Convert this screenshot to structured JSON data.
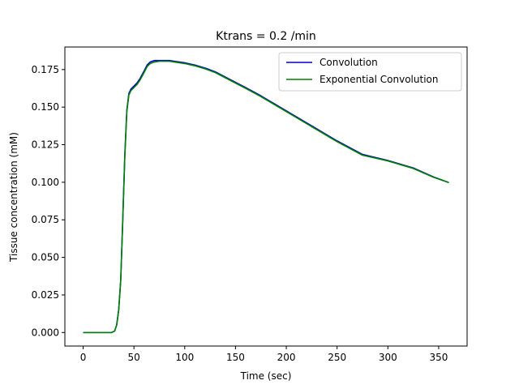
{
  "chart_data": {
    "type": "line",
    "title": "Ktrans = 0.2 /min",
    "xlabel": "Time (sec)",
    "ylabel": "Tissue concentration (mM)",
    "xlim": [
      -18,
      378
    ],
    "ylim": [
      -0.009,
      0.19
    ],
    "xticks": [
      0,
      50,
      100,
      150,
      200,
      250,
      300,
      350
    ],
    "yticks": [
      0.0,
      0.025,
      0.05,
      0.075,
      0.1,
      0.125,
      0.15,
      0.175
    ],
    "xtick_labels": [
      "0",
      "50",
      "100",
      "150",
      "200",
      "250",
      "300",
      "350"
    ],
    "ytick_labels": [
      "0.000",
      "0.025",
      "0.050",
      "0.075",
      "0.100",
      "0.125",
      "0.150",
      "0.175"
    ],
    "grid": false,
    "legend_position": "top-right",
    "series": [
      {
        "name": "Convolution",
        "color": "#0000cc",
        "x": [
          0,
          10,
          20,
          28,
          31,
          33,
          35,
          37,
          39,
          41,
          43,
          45,
          47,
          50,
          53,
          56,
          60,
          63,
          66,
          70,
          75,
          80,
          85,
          90,
          100,
          110,
          120,
          130,
          140,
          150,
          160,
          175,
          200,
          225,
          250,
          275,
          300,
          325,
          345,
          360
        ],
        "y": [
          0.0,
          0.0,
          0.0,
          0.0,
          0.001,
          0.005,
          0.015,
          0.035,
          0.075,
          0.118,
          0.148,
          0.159,
          0.162,
          0.164,
          0.166,
          0.169,
          0.174,
          0.178,
          0.18,
          0.181,
          0.181,
          0.181,
          0.181,
          0.1805,
          0.1795,
          0.178,
          0.176,
          0.1735,
          0.17,
          0.1665,
          0.163,
          0.1575,
          0.1475,
          0.1375,
          0.1275,
          0.1185,
          0.1145,
          0.1095,
          0.1035,
          0.0998
        ]
      },
      {
        "name": "Exponential Convolution",
        "color": "#008000",
        "x": [
          0,
          10,
          20,
          28,
          31,
          33,
          35,
          37,
          39,
          41,
          43,
          45,
          47,
          50,
          53,
          56,
          60,
          63,
          66,
          70,
          75,
          80,
          85,
          90,
          100,
          110,
          120,
          130,
          140,
          150,
          160,
          175,
          200,
          225,
          250,
          275,
          300,
          325,
          345,
          360
        ],
        "y": [
          0.0,
          0.0,
          0.0,
          0.0,
          0.001,
          0.005,
          0.015,
          0.035,
          0.075,
          0.117,
          0.147,
          0.158,
          0.161,
          0.163,
          0.165,
          0.168,
          0.173,
          0.177,
          0.179,
          0.18,
          0.1805,
          0.1805,
          0.1805,
          0.18,
          0.179,
          0.1775,
          0.1755,
          0.173,
          0.1695,
          0.166,
          0.1625,
          0.157,
          0.147,
          0.137,
          0.127,
          0.118,
          0.1142,
          0.1092,
          0.1033,
          0.0998
        ]
      }
    ]
  }
}
